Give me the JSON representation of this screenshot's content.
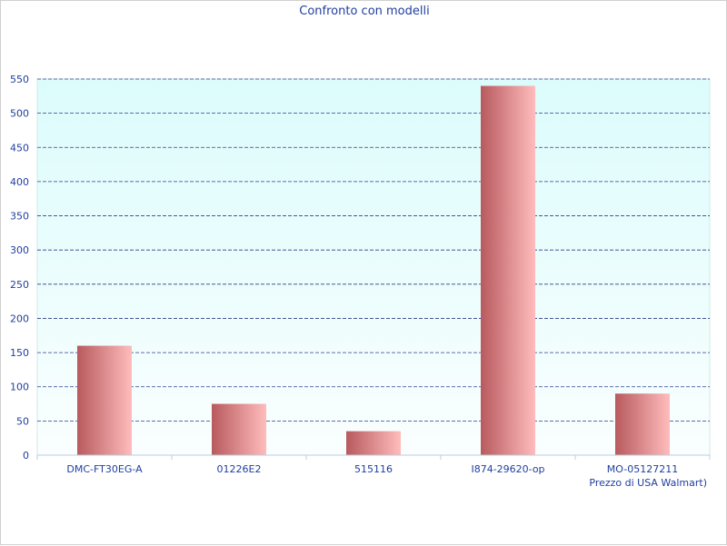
{
  "chart_data": {
    "type": "bar",
    "title": "Confronto con modelli",
    "xlabel": "Prezzo di USA Walmart)",
    "ylabel": "",
    "categories": [
      "DMC-FT30EG-A",
      "01226E2",
      "515116",
      "I874-29620-op",
      "MO-05127211"
    ],
    "values": [
      160,
      75,
      35,
      540,
      90
    ],
    "ylim": [
      0,
      550
    ],
    "yticks": [
      0,
      50,
      100,
      150,
      200,
      250,
      300,
      350,
      400,
      450,
      500,
      550
    ],
    "grid": true,
    "legend": "none"
  },
  "colors": {
    "plot_top": "#dcfcfc",
    "plot_bottom": "#fafefe",
    "bar_dark": "#b85a5e",
    "bar_light": "#ffbcbc",
    "grid": "#2d3f8a",
    "text": "#1f3f9f"
  }
}
